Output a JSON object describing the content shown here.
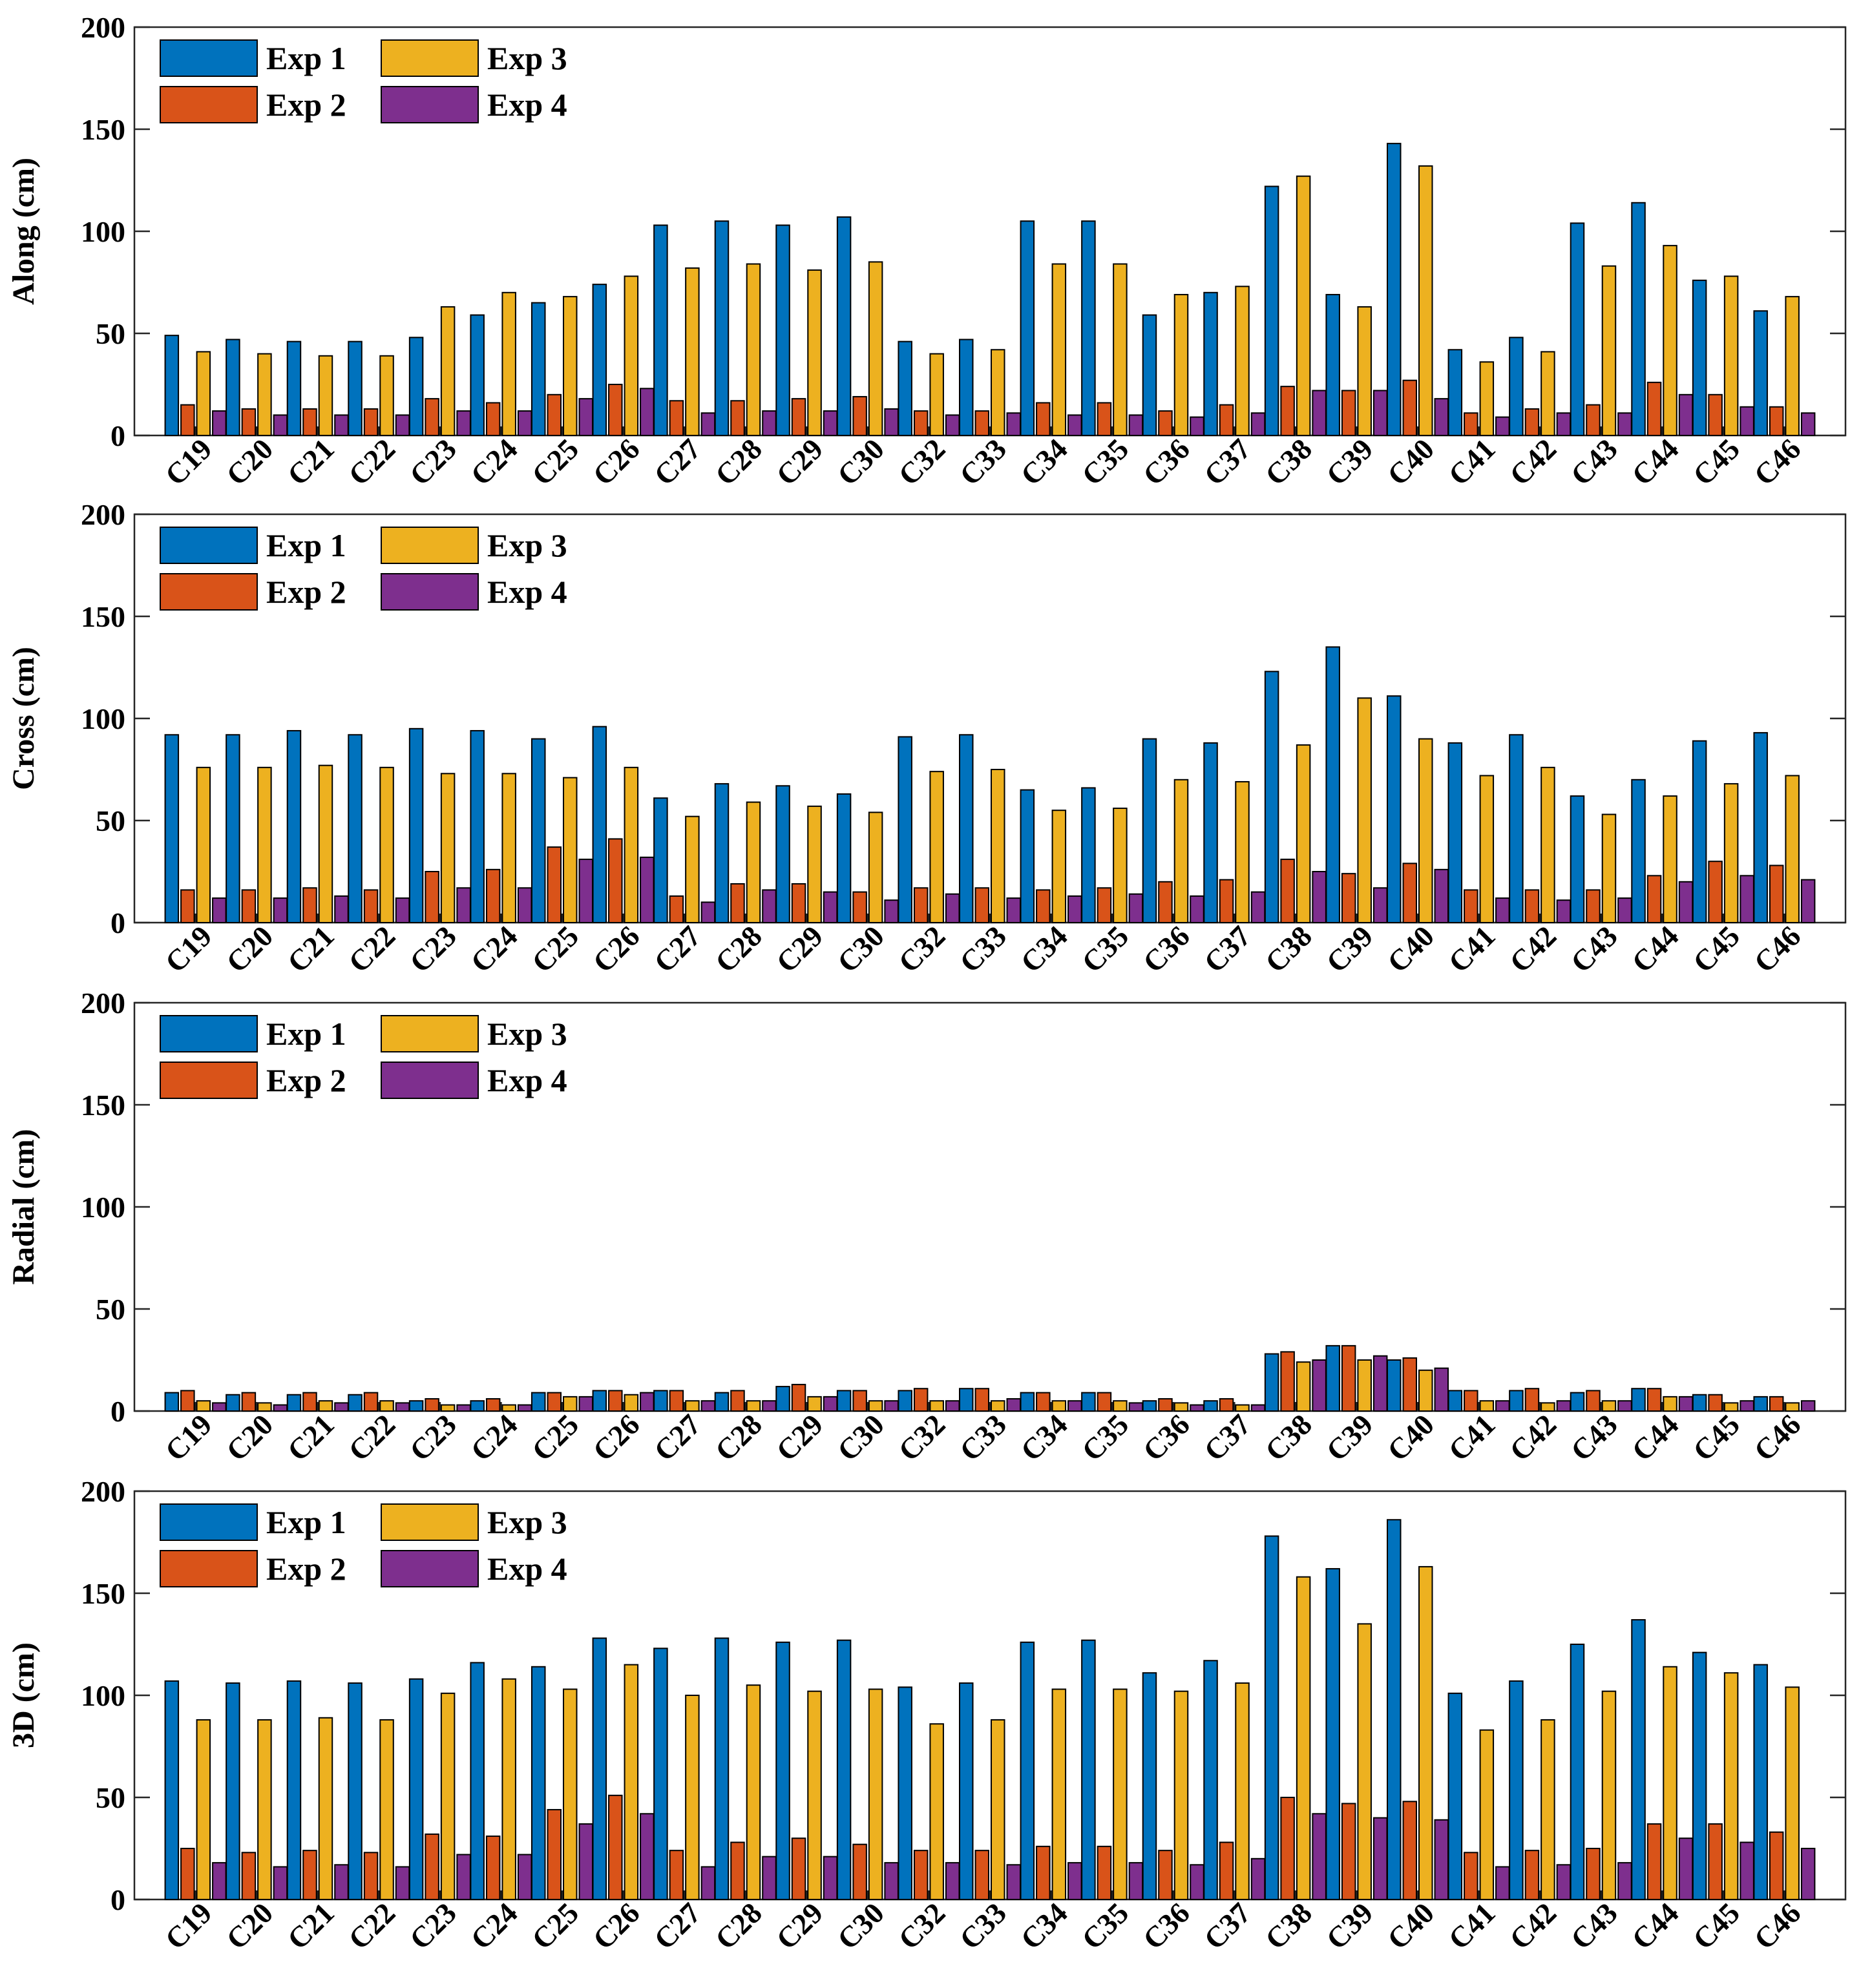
{
  "chart_data": [
    {
      "type": "bar",
      "ylabel": "Along (cm)",
      "ylim": [
        0,
        200
      ],
      "yticks": [
        "0",
        "50",
        "100",
        "150",
        "200"
      ],
      "categories": [
        "C19",
        "C20",
        "C21",
        "C22",
        "C23",
        "C24",
        "C25",
        "C26",
        "C27",
        "C28",
        "C29",
        "C30",
        "C32",
        "C33",
        "C34",
        "C35",
        "C36",
        "C37",
        "C38",
        "C39",
        "C40",
        "C41",
        "C42",
        "C43",
        "C44",
        "C45",
        "C46"
      ],
      "legend_position": "top-left",
      "series": [
        {
          "name": "Exp 1",
          "color": "#0072BD",
          "values": [
            49,
            47,
            46,
            46,
            48,
            59,
            65,
            74,
            103,
            105,
            103,
            107,
            46,
            47,
            105,
            105,
            59,
            70,
            122,
            69,
            143,
            42,
            48,
            104,
            114,
            76,
            61
          ]
        },
        {
          "name": "Exp 2",
          "color": "#D95319",
          "values": [
            15,
            13,
            13,
            13,
            18,
            16,
            20,
            25,
            17,
            17,
            18,
            19,
            12,
            12,
            16,
            16,
            12,
            15,
            24,
            22,
            27,
            11,
            13,
            15,
            26,
            20,
            14
          ]
        },
        {
          "name": "Exp 3",
          "color": "#EDB120",
          "values": [
            41,
            40,
            39,
            39,
            63,
            70,
            68,
            78,
            82,
            84,
            81,
            85,
            40,
            42,
            84,
            84,
            69,
            73,
            127,
            63,
            132,
            36,
            41,
            83,
            93,
            78,
            68
          ]
        },
        {
          "name": "Exp 4",
          "color": "#7E2F8E",
          "values": [
            12,
            10,
            10,
            10,
            12,
            12,
            18,
            23,
            11,
            12,
            12,
            13,
            10,
            11,
            10,
            10,
            9,
            11,
            22,
            22,
            18,
            9,
            11,
            11,
            20,
            14,
            11
          ]
        }
      ]
    },
    {
      "type": "bar",
      "ylabel": "Cross (cm)",
      "ylim": [
        0,
        200
      ],
      "yticks": [
        "0",
        "50",
        "100",
        "150",
        "200"
      ],
      "categories": [
        "C19",
        "C20",
        "C21",
        "C22",
        "C23",
        "C24",
        "C25",
        "C26",
        "C27",
        "C28",
        "C29",
        "C30",
        "C32",
        "C33",
        "C34",
        "C35",
        "C36",
        "C37",
        "C38",
        "C39",
        "C40",
        "C41",
        "C42",
        "C43",
        "C44",
        "C45",
        "C46"
      ],
      "legend_position": "top-left",
      "series": [
        {
          "name": "Exp 1",
          "color": "#0072BD",
          "values": [
            92,
            92,
            94,
            92,
            95,
            94,
            90,
            96,
            61,
            68,
            67,
            63,
            91,
            92,
            65,
            66,
            90,
            88,
            123,
            135,
            111,
            88,
            92,
            62,
            70,
            89,
            93
          ]
        },
        {
          "name": "Exp 2",
          "color": "#D95319",
          "values": [
            16,
            16,
            17,
            16,
            25,
            26,
            37,
            41,
            13,
            19,
            19,
            15,
            17,
            17,
            16,
            17,
            20,
            21,
            31,
            24,
            29,
            16,
            16,
            16,
            23,
            30,
            28
          ]
        },
        {
          "name": "Exp 3",
          "color": "#EDB120",
          "values": [
            76,
            76,
            77,
            76,
            73,
            73,
            71,
            76,
            52,
            59,
            57,
            54,
            74,
            75,
            55,
            56,
            70,
            69,
            87,
            110,
            90,
            72,
            76,
            53,
            62,
            68,
            72
          ]
        },
        {
          "name": "Exp 4",
          "color": "#7E2F8E",
          "values": [
            12,
            12,
            13,
            12,
            17,
            17,
            31,
            32,
            10,
            16,
            15,
            11,
            14,
            12,
            13,
            14,
            13,
            15,
            25,
            17,
            26,
            12,
            11,
            12,
            20,
            23,
            21
          ]
        }
      ]
    },
    {
      "type": "bar",
      "ylabel": "Radial (cm)",
      "ylim": [
        0,
        200
      ],
      "yticks": [
        "0",
        "50",
        "100",
        "150",
        "200"
      ],
      "categories": [
        "C19",
        "C20",
        "C21",
        "C22",
        "C23",
        "C24",
        "C25",
        "C26",
        "C27",
        "C28",
        "C29",
        "C30",
        "C32",
        "C33",
        "C34",
        "C35",
        "C36",
        "C37",
        "C38",
        "C39",
        "C40",
        "C41",
        "C42",
        "C43",
        "C44",
        "C45",
        "C46"
      ],
      "legend_position": "top-left",
      "series": [
        {
          "name": "Exp 1",
          "color": "#0072BD",
          "values": [
            9,
            8,
            8,
            8,
            5,
            5,
            9,
            10,
            10,
            9,
            12,
            10,
            10,
            11,
            9,
            9,
            5,
            5,
            28,
            32,
            25,
            10,
            10,
            9,
            11,
            8,
            7
          ]
        },
        {
          "name": "Exp 2",
          "color": "#D95319",
          "values": [
            10,
            9,
            9,
            9,
            6,
            6,
            9,
            10,
            10,
            10,
            13,
            10,
            11,
            11,
            9,
            9,
            6,
            6,
            29,
            32,
            26,
            10,
            11,
            10,
            11,
            8,
            7
          ]
        },
        {
          "name": "Exp 3",
          "color": "#EDB120",
          "values": [
            5,
            4,
            5,
            5,
            3,
            3,
            7,
            8,
            5,
            5,
            7,
            5,
            5,
            5,
            5,
            5,
            4,
            3,
            24,
            25,
            20,
            5,
            4,
            5,
            7,
            4,
            4
          ]
        },
        {
          "name": "Exp 4",
          "color": "#7E2F8E",
          "values": [
            4,
            3,
            4,
            4,
            3,
            3,
            7,
            9,
            5,
            5,
            7,
            5,
            5,
            6,
            5,
            4,
            3,
            3,
            25,
            27,
            21,
            5,
            5,
            5,
            7,
            5,
            5
          ]
        }
      ]
    },
    {
      "type": "bar",
      "ylabel": "3D (cm)",
      "ylim": [
        0,
        200
      ],
      "yticks": [
        "0",
        "50",
        "100",
        "150",
        "200"
      ],
      "categories": [
        "C19",
        "C20",
        "C21",
        "C22",
        "C23",
        "C24",
        "C25",
        "C26",
        "C27",
        "C28",
        "C29",
        "C30",
        "C32",
        "C33",
        "C34",
        "C35",
        "C36",
        "C37",
        "C38",
        "C39",
        "C40",
        "C41",
        "C42",
        "C43",
        "C44",
        "C45",
        "C46"
      ],
      "legend_position": "top-left",
      "series": [
        {
          "name": "Exp 1",
          "color": "#0072BD",
          "values": [
            107,
            106,
            107,
            106,
            108,
            116,
            114,
            128,
            123,
            128,
            126,
            127,
            104,
            106,
            126,
            127,
            111,
            117,
            178,
            162,
            186,
            101,
            107,
            125,
            137,
            121,
            115
          ]
        },
        {
          "name": "Exp 2",
          "color": "#D95319",
          "values": [
            25,
            23,
            24,
            23,
            32,
            31,
            44,
            51,
            24,
            28,
            30,
            27,
            24,
            24,
            26,
            26,
            24,
            28,
            50,
            47,
            48,
            23,
            24,
            25,
            37,
            37,
            33
          ]
        },
        {
          "name": "Exp 3",
          "color": "#EDB120",
          "values": [
            88,
            88,
            89,
            88,
            101,
            108,
            103,
            115,
            100,
            105,
            102,
            103,
            86,
            88,
            103,
            103,
            102,
            106,
            158,
            135,
            163,
            83,
            88,
            102,
            114,
            111,
            104
          ]
        },
        {
          "name": "Exp 4",
          "color": "#7E2F8E",
          "values": [
            18,
            16,
            17,
            16,
            22,
            22,
            37,
            42,
            16,
            21,
            21,
            18,
            18,
            17,
            18,
            18,
            17,
            20,
            42,
            40,
            39,
            16,
            17,
            18,
            30,
            28,
            25
          ]
        }
      ]
    }
  ]
}
